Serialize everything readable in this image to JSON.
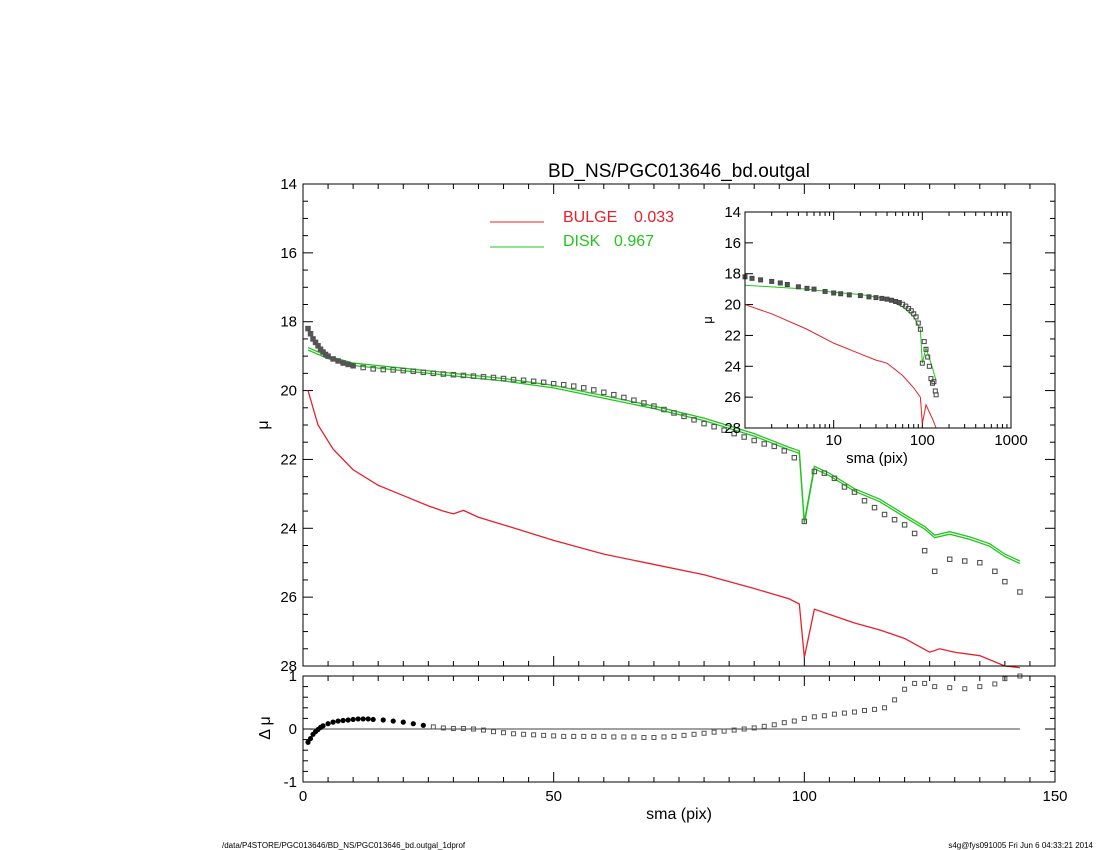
{
  "figure": {
    "title": "BD_NS/PGC013646_bd.outgal",
    "footer_left": "/data/P4STORE/PGC013646/BD_NS/PGC013646_bd.outgal_1dprof",
    "footer_right": "s4g@fys091005  Fri Jun  6 04:33:21 2014"
  },
  "colors": {
    "bulge": "#e8202a",
    "disk": "#22c51e",
    "data": "#555555",
    "axis": "#000000"
  },
  "chart_data": [
    {
      "type": "line",
      "panel": "main profile",
      "ylabel": "μ",
      "xlim": [
        0,
        150
      ],
      "ylim": [
        28,
        14
      ],
      "y_inverted": true,
      "yticks": [
        14,
        16,
        18,
        20,
        22,
        24,
        26,
        28
      ],
      "legend_placement": "top-center",
      "series": [
        {
          "name": "BULGE",
          "value_label": "0.033",
          "color": "#e8202a",
          "x": [
            1,
            3,
            6,
            10,
            15,
            20,
            25,
            28,
            30,
            32,
            35,
            40,
            50,
            60,
            70,
            80,
            90,
            97,
            99,
            100,
            102,
            105,
            110,
            115,
            120,
            125,
            127,
            130,
            135,
            140,
            143
          ],
          "y": [
            20.0,
            21.0,
            21.7,
            22.3,
            22.75,
            23.05,
            23.35,
            23.5,
            23.58,
            23.48,
            23.68,
            23.9,
            24.35,
            24.75,
            25.05,
            25.35,
            25.75,
            26.05,
            26.2,
            27.75,
            26.35,
            26.5,
            26.75,
            26.95,
            27.2,
            27.6,
            27.5,
            27.6,
            27.7,
            28.0,
            28.05
          ]
        },
        {
          "name": "DISK",
          "value_label": "0.967",
          "color": "#22c51e",
          "x": [
            1,
            5,
            10,
            20,
            30,
            40,
            50,
            60,
            70,
            80,
            90,
            97,
            99,
            100,
            102,
            105,
            110,
            115,
            120,
            124,
            126,
            129,
            133,
            137,
            140,
            143
          ],
          "y": [
            18.75,
            19.0,
            19.2,
            19.35,
            19.5,
            19.65,
            19.85,
            20.15,
            20.45,
            20.8,
            21.25,
            21.65,
            21.75,
            23.8,
            22.2,
            22.4,
            22.85,
            23.15,
            23.6,
            23.95,
            24.2,
            24.1,
            24.25,
            24.45,
            24.75,
            24.95
          ]
        }
      ],
      "observed_points": {
        "x": [
          1,
          1.5,
          2,
          2.5,
          3,
          3.5,
          4,
          4.5,
          5,
          6,
          7,
          8,
          9,
          10,
          12,
          14,
          16,
          18,
          20,
          22,
          24,
          26,
          28,
          30,
          32,
          34,
          36,
          38,
          40,
          42,
          44,
          46,
          48,
          50,
          52,
          54,
          56,
          58,
          60,
          62,
          64,
          66,
          68,
          70,
          72,
          74,
          76,
          78,
          80,
          82,
          84,
          86,
          88,
          90,
          92,
          94,
          96,
          98,
          100,
          102,
          104,
          106,
          108,
          110,
          112,
          114,
          116,
          118,
          120,
          122,
          124,
          126,
          129,
          132,
          135,
          138,
          140,
          143
        ],
        "y": [
          18.2,
          18.35,
          18.5,
          18.6,
          18.7,
          18.8,
          18.88,
          18.95,
          19.0,
          19.08,
          19.14,
          19.2,
          19.24,
          19.28,
          19.33,
          19.37,
          19.39,
          19.4,
          19.42,
          19.44,
          19.47,
          19.5,
          19.52,
          19.54,
          19.56,
          19.58,
          19.6,
          19.62,
          19.65,
          19.68,
          19.7,
          19.73,
          19.76,
          19.8,
          19.83,
          19.87,
          19.92,
          19.98,
          20.05,
          20.12,
          20.2,
          20.28,
          20.36,
          20.45,
          20.55,
          20.65,
          20.75,
          20.85,
          20.96,
          21.05,
          21.15,
          21.25,
          21.35,
          21.45,
          21.55,
          21.62,
          21.75,
          21.95,
          23.8,
          22.35,
          22.4,
          22.55,
          22.8,
          22.95,
          23.2,
          23.4,
          23.6,
          23.75,
          23.9,
          24.15,
          24.65,
          25.25,
          24.9,
          24.95,
          25.0,
          25.25,
          25.55,
          25.85
        ]
      }
    },
    {
      "type": "scatter",
      "panel": "residuals",
      "ylabel": "Δ μ",
      "xlabel": "sma (pix)",
      "xlim": [
        0,
        150
      ],
      "ylim": [
        -1,
        1
      ],
      "xticks": [
        0,
        50,
        100,
        150
      ],
      "yticks": [
        -1,
        0,
        1
      ],
      "zero_line": true,
      "points": {
        "x": [
          1,
          1.5,
          2,
          2.5,
          3,
          3.5,
          4,
          5,
          6,
          7,
          8,
          9,
          10,
          11,
          12,
          13,
          14,
          16,
          18,
          20,
          22,
          24,
          26,
          28,
          30,
          32,
          34,
          36,
          38,
          40,
          42,
          44,
          46,
          48,
          50,
          52,
          54,
          56,
          58,
          60,
          62,
          64,
          66,
          68,
          70,
          72,
          74,
          76,
          78,
          80,
          82,
          84,
          86,
          88,
          90,
          92,
          94,
          96,
          98,
          100,
          102,
          104,
          106,
          108,
          110,
          112,
          114,
          116,
          118,
          120,
          122,
          124,
          126,
          129,
          132,
          135,
          138,
          140,
          143
        ],
        "y": [
          -0.25,
          -0.18,
          -0.1,
          -0.05,
          -0.01,
          0.03,
          0.06,
          0.1,
          0.13,
          0.15,
          0.16,
          0.17,
          0.18,
          0.19,
          0.19,
          0.19,
          0.18,
          0.17,
          0.15,
          0.13,
          0.1,
          0.07,
          0.04,
          0.02,
          0.01,
          0.01,
          0.0,
          -0.02,
          -0.05,
          -0.07,
          -0.09,
          -0.1,
          -0.11,
          -0.12,
          -0.13,
          -0.14,
          -0.14,
          -0.14,
          -0.14,
          -0.14,
          -0.15,
          -0.15,
          -0.15,
          -0.16,
          -0.16,
          -0.15,
          -0.14,
          -0.12,
          -0.1,
          -0.08,
          -0.06,
          -0.04,
          -0.02,
          0.0,
          0.02,
          0.05,
          0.08,
          0.12,
          0.15,
          0.2,
          0.23,
          0.25,
          0.28,
          0.3,
          0.32,
          0.35,
          0.37,
          0.4,
          0.55,
          0.75,
          0.86,
          0.86,
          0.8,
          0.78,
          0.76,
          0.8,
          0.85,
          0.95,
          1.0
        ]
      }
    },
    {
      "type": "line",
      "panel": "inset log-scale profile",
      "xlabel": "sma (pix)",
      "ylabel": "μ",
      "x_scale": "log",
      "xlim": [
        1,
        1000
      ],
      "ylim": [
        28,
        14
      ],
      "y_inverted": true,
      "xticks": [
        10,
        100,
        1000
      ],
      "yticks": [
        14,
        16,
        18,
        20,
        22,
        24,
        26,
        28
      ],
      "series": [
        {
          "color": "#e8202a",
          "x": [
            1,
            2,
            5,
            10,
            20,
            30,
            40,
            60,
            80,
            95,
            100,
            110,
            130,
            143
          ],
          "y": [
            20.0,
            20.6,
            21.6,
            22.5,
            23.2,
            23.6,
            23.8,
            24.6,
            25.4,
            26.0,
            27.7,
            26.5,
            27.4,
            28.0
          ]
        },
        {
          "color": "#22c51e",
          "x": [
            1,
            2,
            5,
            10,
            20,
            30,
            40,
            60,
            80,
            95,
            100,
            110,
            130,
            143
          ],
          "y": [
            18.75,
            18.85,
            19.0,
            19.2,
            19.35,
            19.5,
            19.65,
            20.15,
            20.8,
            21.6,
            23.8,
            22.8,
            24.1,
            24.95
          ]
        }
      ],
      "observed_points": {
        "x": [
          1,
          1.2,
          1.5,
          2,
          2.5,
          3,
          4,
          5,
          6,
          8,
          10,
          12,
          15,
          20,
          25,
          30,
          35,
          40,
          45,
          50,
          55,
          60,
          65,
          70,
          75,
          80,
          85,
          90,
          95,
          100,
          105,
          110,
          115,
          120,
          125,
          130,
          135,
          140,
          143
        ],
        "y": [
          18.2,
          18.3,
          18.4,
          18.5,
          18.6,
          18.7,
          18.85,
          18.95,
          19.0,
          19.15,
          19.25,
          19.3,
          19.37,
          19.42,
          19.5,
          19.55,
          19.6,
          19.65,
          19.72,
          19.8,
          19.87,
          19.98,
          20.1,
          20.25,
          20.4,
          20.6,
          20.8,
          21.2,
          21.6,
          23.8,
          22.4,
          22.9,
          23.4,
          24.0,
          24.8,
          25.1,
          25.0,
          25.6,
          25.85
        ]
      }
    }
  ]
}
